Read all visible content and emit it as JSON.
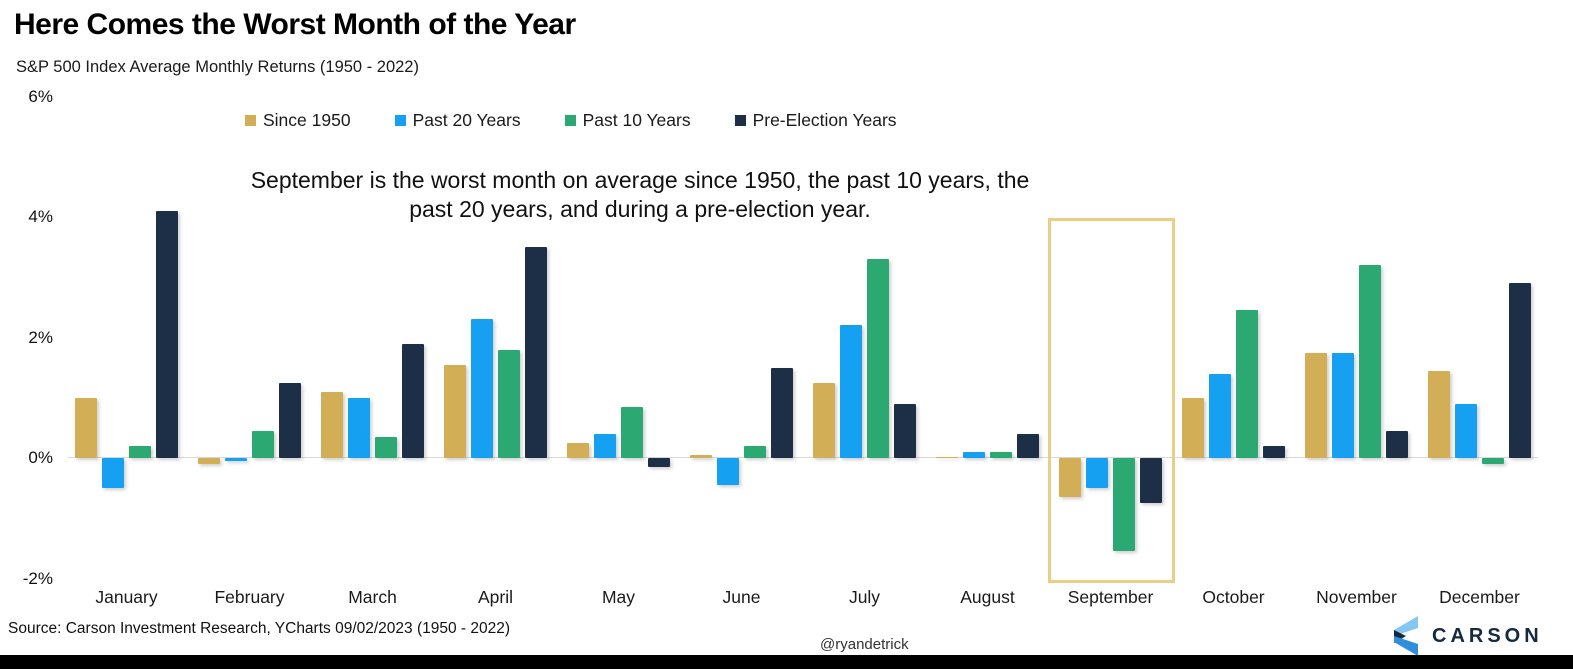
{
  "header": {
    "title": "Here Comes the Worst Month of the Year",
    "subtitle": "S&P 500 Index Average Monthly Returns (1950 - 2022)"
  },
  "annotation": "September is the worst month on average since 1950, the past 10 years, the past 20 years, and during a pre-election year.",
  "chart_data": {
    "type": "bar",
    "title": "S&P 500 Index Average Monthly Returns (1950 - 2022)",
    "categories": [
      "January",
      "February",
      "March",
      "April",
      "May",
      "June",
      "July",
      "August",
      "September",
      "October",
      "November",
      "December"
    ],
    "series": [
      {
        "name": "Since 1950",
        "color": "#d2ae56",
        "values": [
          1.0,
          -0.1,
          1.1,
          1.55,
          0.25,
          0.05,
          1.25,
          0.02,
          -0.65,
          1.0,
          1.75,
          1.45
        ]
      },
      {
        "name": "Past 20 Years",
        "color": "#15a0f2",
        "values": [
          -0.5,
          -0.05,
          1.0,
          2.3,
          0.4,
          -0.45,
          2.2,
          0.1,
          -0.5,
          1.4,
          1.75,
          0.9
        ]
      },
      {
        "name": "Past 10 Years",
        "color": "#2ca873",
        "values": [
          0.2,
          0.45,
          0.35,
          1.8,
          0.85,
          0.2,
          3.3,
          0.1,
          -1.55,
          2.45,
          3.2,
          -0.1
        ]
      },
      {
        "name": "Pre-Election Years",
        "color": "#1c2f47",
        "values": [
          4.1,
          1.25,
          1.9,
          3.5,
          -0.15,
          1.5,
          0.9,
          0.4,
          -0.75,
          0.2,
          0.45,
          2.9
        ]
      }
    ],
    "ylabel": "",
    "xlabel": "",
    "ylim": [
      -2,
      6
    ],
    "yticks": [
      "6%",
      "4%",
      "2%",
      "0%",
      "-2%"
    ],
    "ytick_values": [
      6,
      4,
      2,
      0,
      -2
    ],
    "grid": "zero-line-only",
    "legend_position": "top-center",
    "highlight": {
      "category": "September",
      "border_color": "#e9ce86"
    }
  },
  "footer": {
    "source": "Source: Carson Investment Research, YCharts 09/02/2023 (1950 - 2022)",
    "handle": "@ryandetrick",
    "brand": "CARSON"
  }
}
